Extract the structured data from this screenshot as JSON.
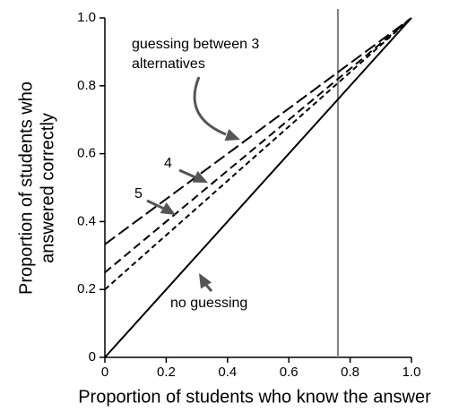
{
  "chart_data": {
    "type": "line",
    "xlabel": "Proportion of students who know the answer",
    "ylabel": [
      "Proportion of students who",
      "answered correctly"
    ],
    "x": [
      0,
      1
    ],
    "series": [
      {
        "name": "no guessing",
        "color": "#000000",
        "dash": "none",
        "values": [
          0,
          1
        ]
      },
      {
        "color": "#000000",
        "dash": "14 5",
        "values": [
          0.333,
          1
        ]
      },
      {
        "name": "4",
        "color": "#000000",
        "dash": "9 5",
        "values": [
          0.25,
          1
        ]
      },
      {
        "name": "5",
        "color": "#000000",
        "dash": "6 4",
        "values": [
          0.2,
          1
        ]
      }
    ],
    "annotations": [
      "guessing between 3",
      "alternatives"
    ],
    "vline": {
      "x": 0.76,
      "color": "#808080"
    },
    "xlim": [
      0,
      1
    ],
    "ylim": [
      0,
      1
    ],
    "xticks": [
      0,
      0.2,
      0.4,
      0.6,
      0.8,
      {
        "value": 1,
        "label": "1.0"
      }
    ],
    "yticks": [
      0,
      0.2,
      0.4,
      0.6,
      0.8,
      {
        "value": 1,
        "label": "1.0"
      }
    ]
  }
}
